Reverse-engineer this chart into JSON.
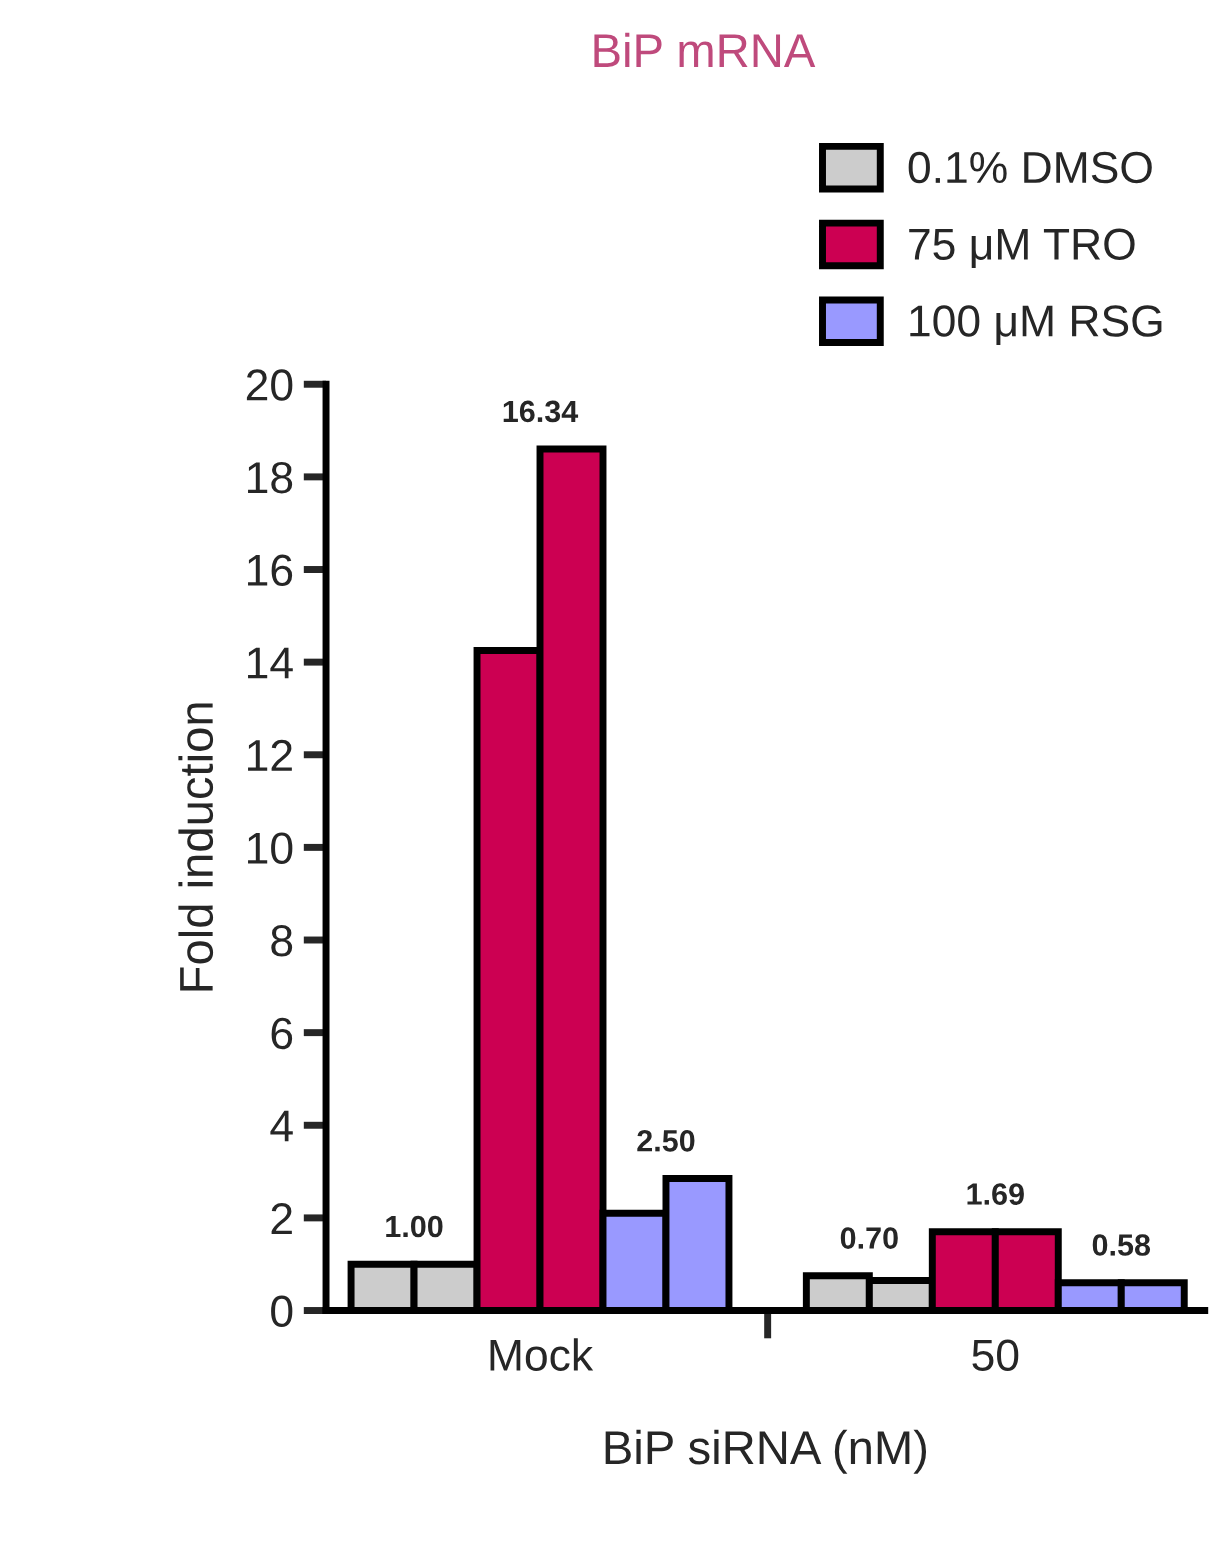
{
  "chart_data": {
    "type": "bar",
    "title": "BiP mRNA",
    "xlabel": "BiP siRNA (nM)",
    "ylabel": "Fold induction",
    "categories": [
      "Mock",
      "50"
    ],
    "series": [
      {
        "name": "0.1% DMSO",
        "color": "#cccccc",
        "values": [
          1.0,
          0.75
        ]
      },
      {
        "color": "#cccccc",
        "values": [
          1.0,
          0.65
        ]
      },
      {
        "name": "75 μM TRO",
        "color": "#cc0052",
        "values": [
          14.25,
          1.7
        ]
      },
      {
        "color": "#cc0052",
        "values": [
          18.6,
          1.7
        ]
      },
      {
        "name": "100 μM RSG",
        "color": "#9999ff",
        "values": [
          2.1,
          0.6
        ]
      },
      {
        "color": "#9999ff",
        "values": [
          2.85,
          0.6
        ]
      }
    ],
    "annotations": [
      "1.00",
      "16.34",
      "2.50",
      "0.70",
      "1.69",
      "0.58"
    ],
    "ylim": [
      0,
      20
    ],
    "yticks": [
      0,
      2,
      4,
      6,
      8,
      10,
      12,
      14,
      16,
      18,
      20
    ],
    "grid": false,
    "legend": "top right"
  }
}
